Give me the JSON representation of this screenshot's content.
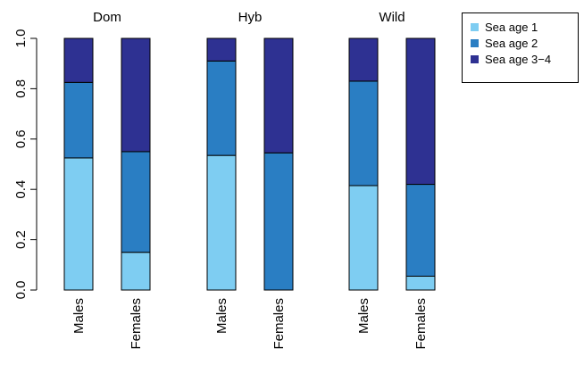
{
  "chart_data": {
    "type": "bar",
    "stacked": true,
    "groups": [
      {
        "name": "Dom",
        "categories": [
          "Males",
          "Females"
        ],
        "series": [
          {
            "values": [
              0.525,
              0.15
            ]
          },
          {
            "values": [
              0.3,
              0.4
            ]
          },
          {
            "values": [
              0.175,
              0.45
            ]
          }
        ]
      },
      {
        "name": "Hyb",
        "categories": [
          "Males",
          "Females"
        ],
        "series": [
          {
            "values": [
              0.535,
              0.0
            ]
          },
          {
            "values": [
              0.375,
              0.545
            ]
          },
          {
            "values": [
              0.09,
              0.455
            ]
          }
        ]
      },
      {
        "name": "Wild",
        "categories": [
          "Males",
          "Females"
        ],
        "series": [
          {
            "values": [
              0.415,
              0.055
            ]
          },
          {
            "values": [
              0.415,
              0.365
            ]
          },
          {
            "values": [
              0.17,
              0.58
            ]
          }
        ]
      }
    ],
    "legend": {
      "position": "top-right",
      "entries": [
        "Sea age 1",
        "Sea age 2",
        "Sea age 3−4"
      ]
    },
    "colors": [
      "#7ecdf2",
      "#2a7ec3",
      "#2e3192"
    ],
    "ylim": [
      0,
      1
    ],
    "yticks": [
      "0.0",
      "0.2",
      "0.4",
      "0.6",
      "0.8",
      "1.0"
    ],
    "grid": false
  }
}
